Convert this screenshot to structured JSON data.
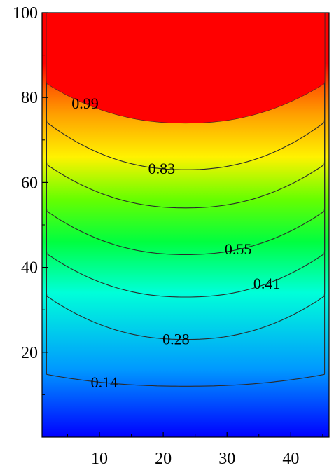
{
  "chart_data": {
    "type": "heatmap",
    "subtype": "filled-contour",
    "title": "",
    "xlabel": "",
    "ylabel": "",
    "xlim": [
      1,
      46
    ],
    "ylim": [
      0,
      100
    ],
    "x_ticks": [
      10,
      20,
      30,
      40
    ],
    "y_ticks": [
      20,
      40,
      60,
      80,
      100
    ],
    "x_tick_labels": [
      "10",
      "20",
      "30",
      "40"
    ],
    "y_tick_labels": [
      "20",
      "40",
      "60",
      "80",
      "100"
    ],
    "colormap": [
      "#0000ff",
      "#00ffff",
      "#00ff00",
      "#ffff00",
      "#ff8000",
      "#ff0000"
    ],
    "value_range": [
      0,
      1
    ],
    "contours": [
      {
        "level": 0.14,
        "label": "0.14",
        "depth_at_center": 12,
        "depth_at_walls": 15,
        "label_x": 11
      },
      {
        "level": 0.28,
        "label": "0.28",
        "depth_at_center": 23,
        "depth_at_walls": 34,
        "label_x": 22
      },
      {
        "level": 0.41,
        "label": "0.41",
        "depth_at_center": 33,
        "depth_at_walls": 44,
        "label_x": 36
      },
      {
        "level": 0.55,
        "label": "0.55",
        "depth_at_center": 43,
        "depth_at_walls": 54,
        "label_x": 32
      },
      {
        "level": 0.69,
        "label": "",
        "depth_at_center": 54,
        "depth_at_walls": 65,
        "label_x": null
      },
      {
        "level": 0.83,
        "label": "0.83",
        "depth_at_center": 63,
        "depth_at_walls": 75,
        "label_x": 20
      },
      {
        "level": 0.99,
        "label": "0.99",
        "depth_at_center": 74,
        "depth_at_walls": 84,
        "label_x": 8
      }
    ]
  }
}
